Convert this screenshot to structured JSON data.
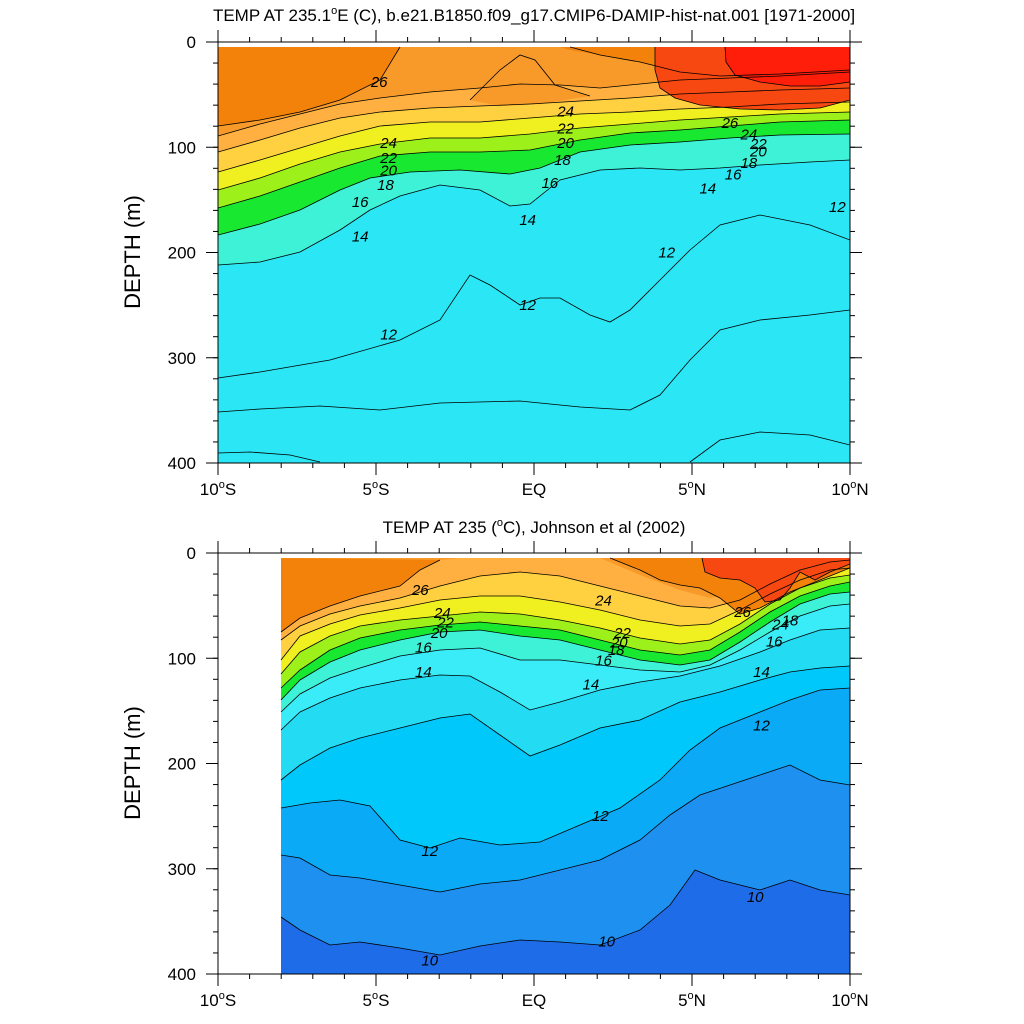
{
  "chart_data": [
    {
      "type": "heatmap",
      "title_main": "TEMP AT 235.1",
      "title_deg": "o",
      "title_rest": "E (",
      "title_unit": "C), b.e21.B1850.f09_g17.CMIP6-DAMIP-hist-nat.001 [1971-2000]",
      "ylabel": "DEPTH (m)",
      "xlim": [
        -10,
        10
      ],
      "ylim": [
        400,
        0
      ],
      "x_ticks": [
        {
          "value": -10,
          "label": "10",
          "deg": "o",
          "suffix": "S"
        },
        {
          "value": -5,
          "label": "5",
          "deg": "o",
          "suffix": "S"
        },
        {
          "value": 0,
          "label": "EQ",
          "deg": "",
          "suffix": ""
        },
        {
          "value": 5,
          "label": "5",
          "deg": "o",
          "suffix": "N"
        },
        {
          "value": 10,
          "label": "10",
          "deg": "o",
          "suffix": "N"
        }
      ],
      "y_ticks": [
        {
          "value": 0,
          "label": "0"
        },
        {
          "value": 100,
          "label": "100"
        },
        {
          "value": 200,
          "label": "200"
        },
        {
          "value": 300,
          "label": "300"
        },
        {
          "value": 400,
          "label": "400"
        }
      ],
      "data_xrange": [
        -10,
        10
      ],
      "contour_labels": [
        {
          "x": -4.9,
          "y": 38,
          "text": "26"
        },
        {
          "x": -4.6,
          "y": 96,
          "text": "24"
        },
        {
          "x": -4.6,
          "y": 110,
          "text": "22"
        },
        {
          "x": -4.6,
          "y": 122,
          "text": "20"
        },
        {
          "x": -4.7,
          "y": 136,
          "text": "18"
        },
        {
          "x": -5.5,
          "y": 152,
          "text": "16"
        },
        {
          "x": -5.5,
          "y": 185,
          "text": "14"
        },
        {
          "x": -4.6,
          "y": 278,
          "text": "12"
        },
        {
          "x": 1.0,
          "y": 66,
          "text": "24"
        },
        {
          "x": 1.0,
          "y": 82,
          "text": "22"
        },
        {
          "x": 1.0,
          "y": 96,
          "text": "20"
        },
        {
          "x": 0.9,
          "y": 112,
          "text": "18"
        },
        {
          "x": 0.5,
          "y": 134,
          "text": "16"
        },
        {
          "x": -0.2,
          "y": 169,
          "text": "14"
        },
        {
          "x": -0.2,
          "y": 250,
          "text": "12"
        },
        {
          "x": 6.2,
          "y": 77,
          "text": "26"
        },
        {
          "x": 6.8,
          "y": 88,
          "text": "24"
        },
        {
          "x": 7.1,
          "y": 97,
          "text": "22"
        },
        {
          "x": 7.1,
          "y": 104,
          "text": "20"
        },
        {
          "x": 6.8,
          "y": 115,
          "text": "18"
        },
        {
          "x": 6.3,
          "y": 126,
          "text": "16"
        },
        {
          "x": 5.5,
          "y": 139,
          "text": "14"
        },
        {
          "x": 4.2,
          "y": 200,
          "text": "12"
        },
        {
          "x": 9.6,
          "y": 157,
          "text": "12"
        }
      ]
    },
    {
      "type": "heatmap",
      "title_main": "TEMP AT 235 (",
      "title_deg": "o",
      "title_rest": "",
      "title_unit": "C), Johnson et al (2002)",
      "ylabel": "DEPTH (m)",
      "xlim": [
        -10,
        10
      ],
      "ylim": [
        400,
        0
      ],
      "x_ticks": [
        {
          "value": -10,
          "label": "10",
          "deg": "o",
          "suffix": "S"
        },
        {
          "value": -5,
          "label": "5",
          "deg": "o",
          "suffix": "S"
        },
        {
          "value": 0,
          "label": "EQ",
          "deg": "",
          "suffix": ""
        },
        {
          "value": 5,
          "label": "5",
          "deg": "o",
          "suffix": "N"
        },
        {
          "value": 10,
          "label": "10",
          "deg": "o",
          "suffix": "N"
        }
      ],
      "y_ticks": [
        {
          "value": 0,
          "label": "0"
        },
        {
          "value": 100,
          "label": "100"
        },
        {
          "value": 200,
          "label": "200"
        },
        {
          "value": 300,
          "label": "300"
        },
        {
          "value": 400,
          "label": "400"
        }
      ],
      "data_xrange": [
        -8,
        10
      ],
      "contour_labels": [
        {
          "x": -3.6,
          "y": 35,
          "text": "26"
        },
        {
          "x": -2.9,
          "y": 57,
          "text": "24"
        },
        {
          "x": -2.8,
          "y": 66,
          "text": "22"
        },
        {
          "x": -3.0,
          "y": 76,
          "text": "20"
        },
        {
          "x": -3.5,
          "y": 90,
          "text": "16"
        },
        {
          "x": -3.5,
          "y": 113,
          "text": "14"
        },
        {
          "x": -3.3,
          "y": 283,
          "text": "12"
        },
        {
          "x": -3.3,
          "y": 387,
          "text": "10"
        },
        {
          "x": 2.2,
          "y": 45,
          "text": "24"
        },
        {
          "x": 2.8,
          "y": 76,
          "text": "22"
        },
        {
          "x": 2.7,
          "y": 85,
          "text": "20"
        },
        {
          "x": 2.6,
          "y": 92,
          "text": "18"
        },
        {
          "x": 2.2,
          "y": 102,
          "text": "16"
        },
        {
          "x": 1.8,
          "y": 125,
          "text": "14"
        },
        {
          "x": 2.1,
          "y": 250,
          "text": "12"
        },
        {
          "x": 2.3,
          "y": 369,
          "text": "10"
        },
        {
          "x": 6.6,
          "y": 56,
          "text": "26"
        },
        {
          "x": 7.8,
          "y": 68,
          "text": "24"
        },
        {
          "x": 8.1,
          "y": 64,
          "text": "18"
        },
        {
          "x": 7.6,
          "y": 84,
          "text": "16"
        },
        {
          "x": 7.2,
          "y": 113,
          "text": "14"
        },
        {
          "x": 7.2,
          "y": 164,
          "text": "12"
        },
        {
          "x": 7.0,
          "y": 327,
          "text": "10"
        }
      ]
    }
  ]
}
